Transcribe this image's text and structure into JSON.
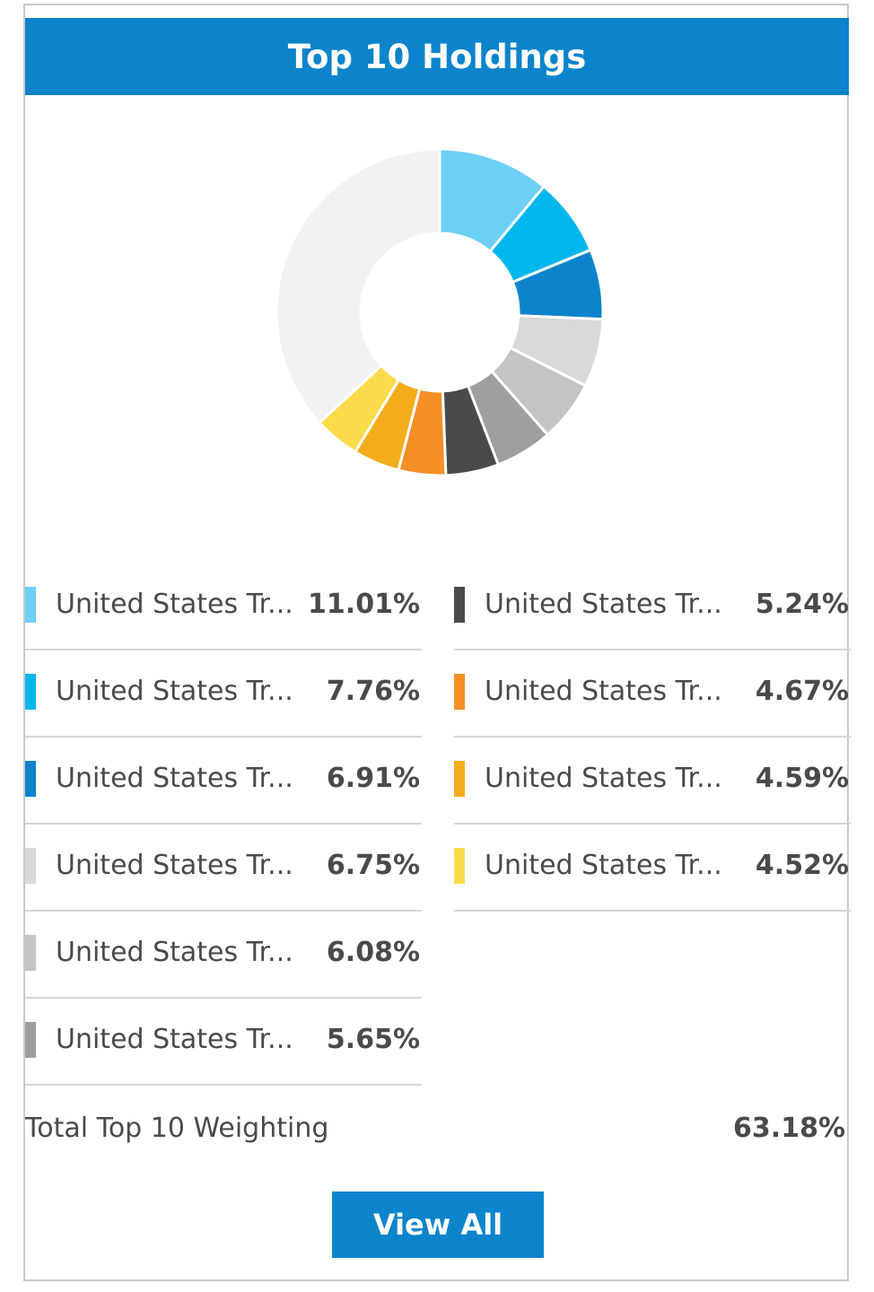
{
  "header": {
    "title": "Top 10 Holdings"
  },
  "chart_data": {
    "type": "pie",
    "categories": [
      "United States Tr...",
      "United States Tr...",
      "United States Tr...",
      "United States Tr...",
      "United States Tr...",
      "United States Tr...",
      "United States Tr...",
      "United States Tr...",
      "United States Tr...",
      "United States Tr..."
    ],
    "values": [
      11.01,
      7.76,
      6.91,
      6.75,
      6.08,
      5.65,
      5.24,
      4.67,
      4.59,
      4.52
    ],
    "colors": [
      "#6ccff6",
      "#00b7ec",
      "#0b84cc",
      "#d9d9d9",
      "#c4c4c4",
      "#9e9e9e",
      "#4a4a4a",
      "#f58f26",
      "#f5ac1b",
      "#fcdb4b"
    ],
    "remainder_color": "#f2f2f2"
  },
  "legend": {
    "left": [
      {
        "name": "United States Tr...",
        "value": "11.01%",
        "color": "#6ccff6"
      },
      {
        "name": "United States Tr...",
        "value": "7.76%",
        "color": "#00b7ec"
      },
      {
        "name": "United States Tr...",
        "value": "6.91%",
        "color": "#0b84cc"
      },
      {
        "name": "United States Tr...",
        "value": "6.75%",
        "color": "#d9d9d9"
      },
      {
        "name": "United States Tr...",
        "value": "6.08%",
        "color": "#c4c4c4"
      },
      {
        "name": "United States Tr...",
        "value": "5.65%",
        "color": "#9e9e9e"
      }
    ],
    "right": [
      {
        "name": "United States Tr...",
        "value": "5.24%",
        "color": "#4a4a4a"
      },
      {
        "name": "United States Tr...",
        "value": "4.67%",
        "color": "#f58f26"
      },
      {
        "name": "United States Tr...",
        "value": "4.59%",
        "color": "#f5ac1b"
      },
      {
        "name": "United States Tr...",
        "value": "4.52%",
        "color": "#fcdb4b"
      }
    ]
  },
  "total": {
    "label": "Total Top 10 Weighting",
    "value": "63.18%"
  },
  "actions": {
    "view_all_label": "View All"
  }
}
